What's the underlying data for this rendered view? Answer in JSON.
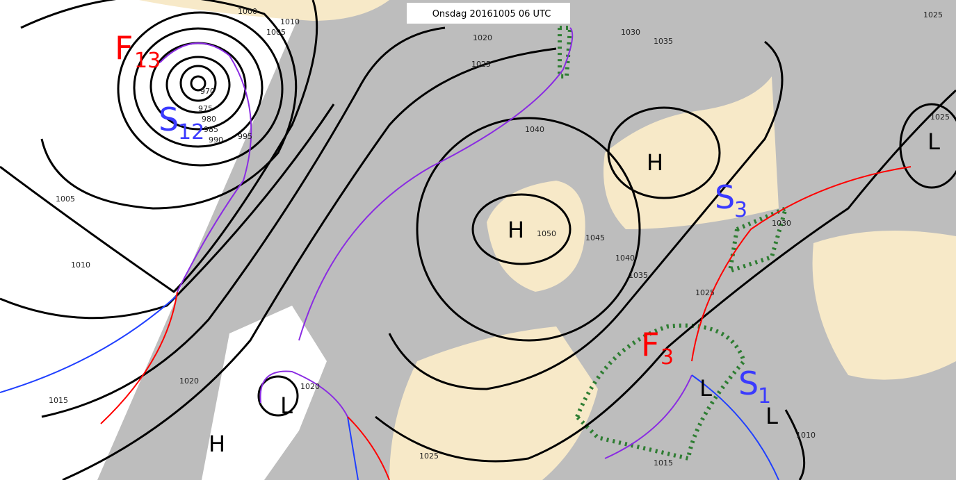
{
  "header": {
    "title": "Onsdag 20161005 06 UTC"
  },
  "pressure_centers": [
    "H",
    "H",
    "H",
    "L",
    "L",
    "L",
    "L"
  ],
  "systems": [
    {
      "letter": "F",
      "sub": "13"
    },
    {
      "letter": "S",
      "sub": "12"
    },
    {
      "letter": "S",
      "sub": "3"
    },
    {
      "letter": "F",
      "sub": "3"
    },
    {
      "letter": "S",
      "sub": "1"
    }
  ],
  "isobar_labels": [
    "970",
    "975",
    "980",
    "985",
    "990",
    "995",
    "1000",
    "1005",
    "1010",
    "1005",
    "1010",
    "1015",
    "1020",
    "1020",
    "1025",
    "1020",
    "1025",
    "1030",
    "1035",
    "1040",
    "1050",
    "1045",
    "1040",
    "1035",
    "1030",
    "1025",
    "1025",
    "1025",
    "1010",
    "1015"
  ]
}
